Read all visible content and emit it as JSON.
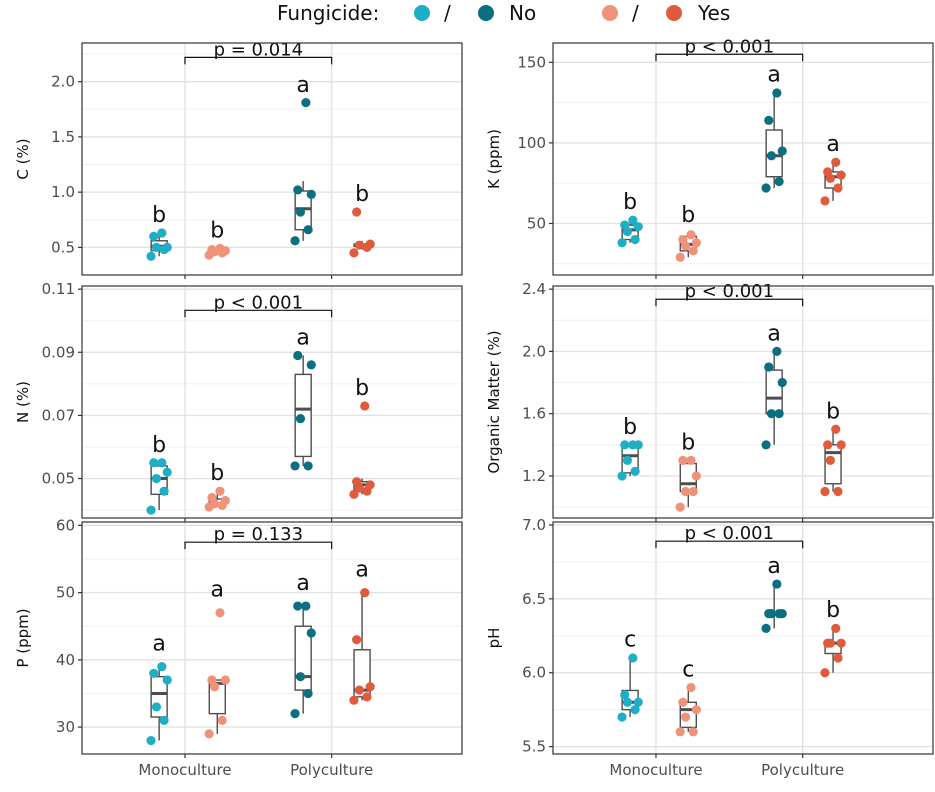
{
  "legend": {
    "title": "Fungicide:",
    "slash": "/",
    "no_label": "No",
    "yes_label": "Yes",
    "colors": {
      "mono_no": "#1eaec6",
      "poly_no": "#0b6f80",
      "mono_yes": "#f0927a",
      "poly_yes": "#e05a3c"
    }
  },
  "x_categories": [
    "Monoculture",
    "Polyculture"
  ],
  "chart_data": [
    {
      "type": "box",
      "id": "carbon",
      "ylabel": "C (%)",
      "ylim": [
        0.25,
        2.35
      ],
      "yticks": [
        0.5,
        1.0,
        1.5,
        2.0
      ],
      "ytick_labels": [
        "0.5",
        "1.0",
        "1.5",
        "2.0"
      ],
      "bracket_label": "p = 0.014",
      "bracket_y": 2.22,
      "letter_offset": 0.17,
      "groups": [
        {
          "name": "Monoculture / No",
          "q1": 0.47,
          "median": 0.51,
          "q3": 0.56,
          "whisker_low": 0.42,
          "whisker_high": 0.63,
          "points": [
            0.42,
            0.48,
            0.5,
            0.5,
            0.6,
            0.63
          ],
          "letter": "b"
        },
        {
          "name": "Monoculture / Yes",
          "q1": 0.44,
          "median": 0.46,
          "q3": 0.47,
          "whisker_low": 0.43,
          "whisker_high": 0.49,
          "points": [
            0.43,
            0.45,
            0.46,
            0.47,
            0.48,
            0.49
          ],
          "letter": "b"
        },
        {
          "name": "Polyculture / No",
          "q1": 0.66,
          "median": 0.85,
          "q3": 1.01,
          "whisker_low": 0.56,
          "whisker_high": 1.1,
          "points": [
            0.56,
            0.66,
            0.82,
            0.98,
            1.02,
            1.81
          ],
          "letter": "a"
        },
        {
          "name": "Polyculture / Yes",
          "q1": 0.51,
          "median": 0.52,
          "q3": 0.53,
          "whisker_low": 0.48,
          "whisker_high": 0.56,
          "points": [
            0.45,
            0.5,
            0.52,
            0.53,
            0.82
          ],
          "letter": "b"
        }
      ]
    },
    {
      "type": "box",
      "id": "potassium",
      "ylabel": "K (ppm)",
      "ylim": [
        18,
        162
      ],
      "yticks": [
        50,
        100,
        150
      ],
      "ytick_labels": [
        "50",
        "100",
        "150"
      ],
      "bracket_label": "p < 0.001",
      "bracket_y": 155,
      "letter_offset": 12,
      "groups": [
        {
          "name": "Monoculture / No",
          "q1": 40,
          "median": 46,
          "q3": 49,
          "whisker_low": 38,
          "whisker_high": 52,
          "points": [
            38,
            40,
            45,
            48,
            49,
            52
          ],
          "letter": "b"
        },
        {
          "name": "Monoculture / Yes",
          "q1": 33,
          "median": 37,
          "q3": 42,
          "whisker_low": 29,
          "whisker_high": 44,
          "points": [
            29,
            33,
            36,
            38,
            40,
            43
          ],
          "letter": "b"
        },
        {
          "name": "Polyculture / No",
          "q1": 79,
          "median": 92,
          "q3": 108,
          "whisker_low": 72,
          "whisker_high": 130,
          "points": [
            72,
            76,
            92,
            95,
            114,
            131
          ],
          "letter": "a"
        },
        {
          "name": "Polyculture / Yes",
          "q1": 72,
          "median": 79,
          "q3": 82,
          "whisker_low": 64,
          "whisker_high": 88,
          "points": [
            64,
            72,
            78,
            80,
            82,
            88
          ],
          "letter": "a"
        }
      ]
    },
    {
      "type": "box",
      "id": "nitrogen",
      "ylabel": "N (%)",
      "ylim": [
        0.0375,
        0.111
      ],
      "yticks": [
        0.05,
        0.07,
        0.09,
        0.11
      ],
      "ytick_labels": [
        "0.05",
        "0.07",
        "0.09",
        "0.11"
      ],
      "bracket_label": "p < 0.001",
      "bracket_y": 0.1033,
      "letter_offset": 0.006,
      "groups": [
        {
          "name": "Monoculture / No",
          "q1": 0.045,
          "median": 0.05,
          "q3": 0.054,
          "whisker_low": 0.04,
          "whisker_high": 0.055,
          "points": [
            0.04,
            0.046,
            0.05,
            0.052,
            0.055,
            0.055
          ],
          "letter": "b"
        },
        {
          "name": "Monoculture / Yes",
          "q1": 0.0415,
          "median": 0.042,
          "q3": 0.0435,
          "whisker_low": 0.041,
          "whisker_high": 0.045,
          "points": [
            0.041,
            0.0415,
            0.042,
            0.043,
            0.044,
            0.046
          ],
          "letter": "b"
        },
        {
          "name": "Polyculture / No",
          "q1": 0.057,
          "median": 0.072,
          "q3": 0.083,
          "whisker_low": 0.054,
          "whisker_high": 0.089,
          "points": [
            0.054,
            0.054,
            0.069,
            0.086,
            0.089
          ],
          "letter": "a"
        },
        {
          "name": "Polyculture / Yes",
          "q1": 0.0465,
          "median": 0.048,
          "q3": 0.049,
          "whisker_low": 0.045,
          "whisker_high": 0.05,
          "points": [
            0.045,
            0.046,
            0.047,
            0.048,
            0.049,
            0.073
          ],
          "letter": "b"
        }
      ]
    },
    {
      "type": "box",
      "id": "organic-matter",
      "ylabel": "Organic Matter (%)",
      "ylim": [
        0.93,
        2.42
      ],
      "yticks": [
        1.2,
        1.6,
        2.0,
        2.4
      ],
      "ytick_labels": [
        "1.2",
        "1.6",
        "2.0",
        "2.4"
      ],
      "bracket_label": "p < 0.001",
      "bracket_y": 2.335,
      "letter_offset": 0.12,
      "groups": [
        {
          "name": "Monoculture / No",
          "q1": 1.22,
          "median": 1.33,
          "q3": 1.4,
          "whisker_low": 1.2,
          "whisker_high": 1.4,
          "points": [
            1.2,
            1.23,
            1.3,
            1.4,
            1.4,
            1.4
          ],
          "letter": "b"
        },
        {
          "name": "Monoculture / Yes",
          "q1": 1.1,
          "median": 1.15,
          "q3": 1.28,
          "whisker_low": 1.0,
          "whisker_high": 1.3,
          "points": [
            1.0,
            1.1,
            1.1,
            1.2,
            1.3,
            1.3
          ],
          "letter": "b"
        },
        {
          "name": "Polyculture / No",
          "q1": 1.6,
          "median": 1.7,
          "q3": 1.88,
          "whisker_low": 1.4,
          "whisker_high": 2.0,
          "points": [
            1.4,
            1.6,
            1.6,
            1.8,
            1.9,
            2.0
          ],
          "letter": "a"
        },
        {
          "name": "Polyculture / Yes",
          "q1": 1.15,
          "median": 1.35,
          "q3": 1.4,
          "whisker_low": 1.1,
          "whisker_high": 1.5,
          "points": [
            1.1,
            1.1,
            1.3,
            1.4,
            1.4,
            1.5
          ],
          "letter": "b"
        }
      ]
    },
    {
      "type": "box",
      "id": "phosphorus",
      "ylabel": "P (ppm)",
      "ylim": [
        26,
        60.5
      ],
      "yticks": [
        30,
        40,
        50,
        60
      ],
      "ytick_labels": [
        "30",
        "40",
        "50",
        "60"
      ],
      "bracket_label": "p = 0.133",
      "bracket_y": 57.5,
      "letter_offset": 3.6,
      "groups": [
        {
          "name": "Monoculture / No",
          "q1": 31.5,
          "median": 35,
          "q3": 37.5,
          "whisker_low": 28,
          "whisker_high": 39,
          "points": [
            28,
            31,
            33,
            37,
            38,
            39
          ],
          "letter": "a"
        },
        {
          "name": "Monoculture / Yes",
          "q1": 32,
          "median": 36.5,
          "q3": 37,
          "whisker_low": 29,
          "whisker_high": 37,
          "points": [
            29,
            31,
            36,
            37,
            37,
            47
          ],
          "letter": "a"
        },
        {
          "name": "Polyculture / No",
          "q1": 35.5,
          "median": 37.5,
          "q3": 45,
          "whisker_low": 32,
          "whisker_high": 48,
          "points": [
            32,
            35,
            37.5,
            44,
            48,
            48
          ],
          "letter": "a"
        },
        {
          "name": "Polyculture / Yes",
          "q1": 34.5,
          "median": 35.5,
          "q3": 41.5,
          "whisker_low": 34,
          "whisker_high": 50,
          "points": [
            34,
            34.5,
            35.5,
            36,
            43,
            50
          ],
          "letter": "a"
        }
      ]
    },
    {
      "type": "box",
      "id": "ph",
      "ylabel": "pH",
      "ylim": [
        5.45,
        7.02
      ],
      "yticks": [
        5.5,
        6.0,
        6.5,
        7.0
      ],
      "ytick_labels": [
        "5.5",
        "6.0",
        "6.5",
        "7.0"
      ],
      "bracket_label": "p < 0.001",
      "bracket_y": 6.89,
      "letter_offset": 0.13,
      "groups": [
        {
          "name": "Monoculture / No",
          "q1": 5.75,
          "median": 5.8,
          "q3": 5.88,
          "whisker_low": 5.7,
          "whisker_high": 6.1,
          "points": [
            5.7,
            5.75,
            5.8,
            5.8,
            5.85,
            6.1
          ],
          "letter": "c"
        },
        {
          "name": "Monoculture / Yes",
          "q1": 5.63,
          "median": 5.75,
          "q3": 5.8,
          "whisker_low": 5.6,
          "whisker_high": 5.9,
          "points": [
            5.6,
            5.6,
            5.7,
            5.75,
            5.8,
            5.9
          ],
          "letter": "c"
        },
        {
          "name": "Polyculture / No",
          "q1": 6.4,
          "median": 6.4,
          "q3": 6.4,
          "whisker_low": 6.3,
          "whisker_high": 6.6,
          "points": [
            6.3,
            6.4,
            6.4,
            6.4,
            6.4,
            6.6
          ],
          "letter": "a"
        },
        {
          "name": "Polyculture / Yes",
          "q1": 6.13,
          "median": 6.2,
          "q3": 6.2,
          "whisker_low": 6.0,
          "whisker_high": 6.3,
          "points": [
            6.0,
            6.1,
            6.2,
            6.2,
            6.2,
            6.3
          ],
          "letter": "b"
        }
      ]
    }
  ]
}
